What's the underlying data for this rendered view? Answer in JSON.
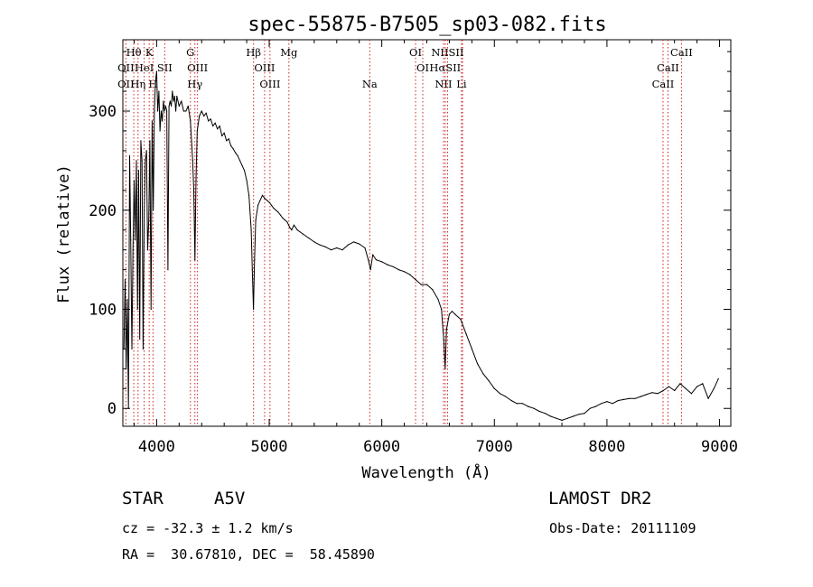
{
  "chart_data": {
    "type": "line",
    "title": "spec-55875-B7505_sp03-082.fits",
    "xlabel": "Wavelength (Å)",
    "ylabel": "Flux (relative)",
    "xlim": [
      3700,
      9100
    ],
    "ylim": [
      -18,
      372
    ],
    "x_ticks": [
      4000,
      5000,
      6000,
      7000,
      8000,
      9000
    ],
    "y_ticks": [
      0,
      100,
      200,
      300
    ],
    "grid": false,
    "line_color": "#000000",
    "marker_color": "#d02020",
    "series": [
      {
        "points": [
          [
            3710,
            60
          ],
          [
            3720,
            130
          ],
          [
            3730,
            40
          ],
          [
            3740,
            110
          ],
          [
            3750,
            0
          ],
          [
            3760,
            255
          ],
          [
            3770,
            170
          ],
          [
            3780,
            60
          ],
          [
            3790,
            160
          ],
          [
            3800,
            230
          ],
          [
            3810,
            170
          ],
          [
            3820,
            250
          ],
          [
            3830,
            100
          ],
          [
            3840,
            240
          ],
          [
            3850,
            70
          ],
          [
            3860,
            270
          ],
          [
            3870,
            250
          ],
          [
            3880,
            60
          ],
          [
            3890,
            200
          ],
          [
            3900,
            250
          ],
          [
            3910,
            260
          ],
          [
            3920,
            160
          ],
          [
            3930,
            190
          ],
          [
            3940,
            270
          ],
          [
            3950,
            100
          ],
          [
            3960,
            290
          ],
          [
            3970,
            200
          ],
          [
            3980,
            300
          ],
          [
            3990,
            330
          ],
          [
            4000,
            340
          ],
          [
            4010,
            300
          ],
          [
            4020,
            320
          ],
          [
            4030,
            280
          ],
          [
            4040,
            300
          ],
          [
            4050,
            290
          ],
          [
            4060,
            310
          ],
          [
            4070,
            300
          ],
          [
            4080,
            305
          ],
          [
            4090,
            300
          ],
          [
            4100,
            140
          ],
          [
            4110,
            305
          ],
          [
            4120,
            310
          ],
          [
            4130,
            305
          ],
          [
            4140,
            320
          ],
          [
            4150,
            310
          ],
          [
            4160,
            315
          ],
          [
            4170,
            300
          ],
          [
            4180,
            315
          ],
          [
            4200,
            305
          ],
          [
            4220,
            310
          ],
          [
            4240,
            300
          ],
          [
            4260,
            300
          ],
          [
            4280,
            305
          ],
          [
            4300,
            290
          ],
          [
            4320,
            250
          ],
          [
            4330,
            220
          ],
          [
            4340,
            150
          ],
          [
            4350,
            230
          ],
          [
            4360,
            280
          ],
          [
            4380,
            295
          ],
          [
            4400,
            300
          ],
          [
            4420,
            295
          ],
          [
            4440,
            298
          ],
          [
            4460,
            290
          ],
          [
            4480,
            292
          ],
          [
            4500,
            285
          ],
          [
            4520,
            288
          ],
          [
            4540,
            282
          ],
          [
            4560,
            285
          ],
          [
            4580,
            275
          ],
          [
            4600,
            278
          ],
          [
            4620,
            270
          ],
          [
            4640,
            272
          ],
          [
            4660,
            265
          ],
          [
            4680,
            262
          ],
          [
            4700,
            258
          ],
          [
            4720,
            255
          ],
          [
            4740,
            250
          ],
          [
            4760,
            245
          ],
          [
            4780,
            240
          ],
          [
            4800,
            230
          ],
          [
            4820,
            215
          ],
          [
            4840,
            180
          ],
          [
            4850,
            140
          ],
          [
            4860,
            100
          ],
          [
            4870,
            150
          ],
          [
            4880,
            190
          ],
          [
            4900,
            205
          ],
          [
            4920,
            210
          ],
          [
            4940,
            215
          ],
          [
            4960,
            212
          ],
          [
            4980,
            210
          ],
          [
            5000,
            208
          ],
          [
            5020,
            205
          ],
          [
            5040,
            202
          ],
          [
            5060,
            200
          ],
          [
            5080,
            198
          ],
          [
            5100,
            195
          ],
          [
            5120,
            192
          ],
          [
            5140,
            190
          ],
          [
            5160,
            188
          ],
          [
            5180,
            183
          ],
          [
            5200,
            180
          ],
          [
            5220,
            185
          ],
          [
            5250,
            180
          ],
          [
            5300,
            176
          ],
          [
            5350,
            172
          ],
          [
            5400,
            168
          ],
          [
            5450,
            165
          ],
          [
            5500,
            163
          ],
          [
            5550,
            160
          ],
          [
            5600,
            162
          ],
          [
            5650,
            160
          ],
          [
            5700,
            165
          ],
          [
            5750,
            168
          ],
          [
            5800,
            166
          ],
          [
            5850,
            162
          ],
          [
            5880,
            150
          ],
          [
            5900,
            140
          ],
          [
            5920,
            155
          ],
          [
            5950,
            150
          ],
          [
            6000,
            148
          ],
          [
            6050,
            145
          ],
          [
            6100,
            143
          ],
          [
            6150,
            140
          ],
          [
            6200,
            138
          ],
          [
            6250,
            135
          ],
          [
            6300,
            130
          ],
          [
            6350,
            125
          ],
          [
            6400,
            125
          ],
          [
            6450,
            120
          ],
          [
            6500,
            110
          ],
          [
            6530,
            100
          ],
          [
            6550,
            70
          ],
          [
            6563,
            40
          ],
          [
            6575,
            80
          ],
          [
            6600,
            95
          ],
          [
            6625,
            98
          ],
          [
            6650,
            95
          ],
          [
            6700,
            90
          ],
          [
            6750,
            75
          ],
          [
            6800,
            60
          ],
          [
            6850,
            45
          ],
          [
            6900,
            35
          ],
          [
            6950,
            28
          ],
          [
            7000,
            20
          ],
          [
            7050,
            15
          ],
          [
            7100,
            12
          ],
          [
            7150,
            8
          ],
          [
            7200,
            5
          ],
          [
            7250,
            5
          ],
          [
            7300,
            2
          ],
          [
            7350,
            0
          ],
          [
            7400,
            -3
          ],
          [
            7450,
            -5
          ],
          [
            7500,
            -8
          ],
          [
            7550,
            -10
          ],
          [
            7600,
            -12
          ],
          [
            7650,
            -10
          ],
          [
            7700,
            -8
          ],
          [
            7750,
            -6
          ],
          [
            7800,
            -5
          ],
          [
            7850,
            0
          ],
          [
            7900,
            2
          ],
          [
            7950,
            5
          ],
          [
            8000,
            7
          ],
          [
            8050,
            5
          ],
          [
            8100,
            8
          ],
          [
            8150,
            9
          ],
          [
            8200,
            10
          ],
          [
            8250,
            10
          ],
          [
            8300,
            12
          ],
          [
            8350,
            14
          ],
          [
            8400,
            16
          ],
          [
            8450,
            15
          ],
          [
            8500,
            18
          ],
          [
            8550,
            22
          ],
          [
            8600,
            18
          ],
          [
            8650,
            25
          ],
          [
            8700,
            20
          ],
          [
            8750,
            15
          ],
          [
            8800,
            22
          ],
          [
            8850,
            25
          ],
          [
            8900,
            10
          ],
          [
            8950,
            20
          ],
          [
            8990,
            30
          ]
        ]
      }
    ],
    "line_markers": [
      {
        "label": "Hθ",
        "x": 3797,
        "row": 0
      },
      {
        "label": "K",
        "x": 3934,
        "row": 0
      },
      {
        "label": "G",
        "x": 4300,
        "row": 0
      },
      {
        "label": "Hβ",
        "x": 4861,
        "row": 0
      },
      {
        "label": "Mg",
        "x": 5175,
        "row": 0
      },
      {
        "label": "OI",
        "x": 6300,
        "row": 0
      },
      {
        "label": "NIISII",
        "x": 6584,
        "row": 0
      },
      {
        "label": "CaII",
        "x": 8662,
        "row": 0
      },
      {
        "label": "OII",
        "x": 3727,
        "row": 1
      },
      {
        "label": "HeI",
        "x": 3889,
        "row": 1
      },
      {
        "label": "SII",
        "x": 4072,
        "row": 1
      },
      {
        "label": "OIII",
        "x": 4363,
        "row": 1
      },
      {
        "label": "OIII",
        "x": 4959,
        "row": 1
      },
      {
        "label": "OI",
        "x": 6364,
        "row": 1
      },
      {
        "label": "HαSII",
        "x": 6563,
        "row": 1
      },
      {
        "label": "CaII",
        "x": 8542,
        "row": 1
      },
      {
        "label": "OII",
        "x": 3727,
        "row": 2
      },
      {
        "label": "Hη",
        "x": 3835,
        "row": 2
      },
      {
        "label": "H",
        "x": 3968,
        "row": 2
      },
      {
        "label": "Hγ",
        "x": 4340,
        "row": 2
      },
      {
        "label": "OIII",
        "x": 5007,
        "row": 2
      },
      {
        "label": "Na",
        "x": 5893,
        "row": 2
      },
      {
        "label": "NII",
        "x": 6548,
        "row": 2
      },
      {
        "label": "Li",
        "x": 6708,
        "row": 2
      },
      {
        "label": "CaII",
        "x": 8498,
        "row": 2
      }
    ],
    "marker_lines": [
      3727,
      3797,
      3835,
      3889,
      3934,
      3968,
      4072,
      4300,
      4340,
      4363,
      4861,
      4959,
      5007,
      5175,
      5893,
      6300,
      6364,
      6548,
      6563,
      6584,
      6708,
      6717,
      8498,
      8542,
      8662
    ]
  },
  "info": {
    "object": "STAR",
    "subclass": "A5V",
    "survey": "LAMOST DR2",
    "cz": "cz = -32.3 ± 1.2 km/s",
    "obs_date": "Obs-Date: 20111109",
    "radec": "RA =  30.67810, DEC =  58.45890"
  }
}
